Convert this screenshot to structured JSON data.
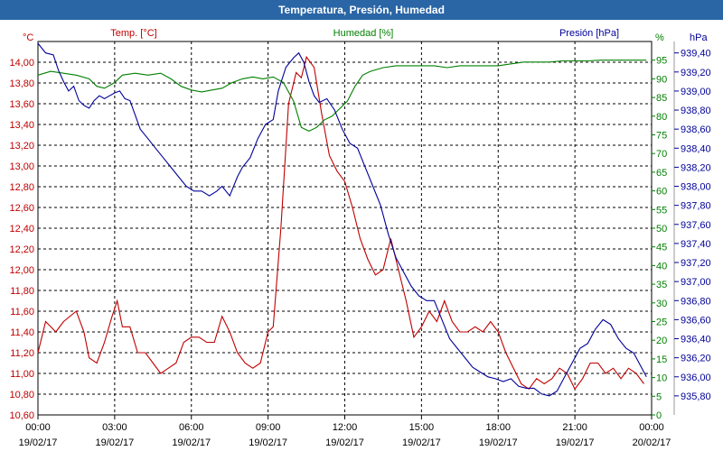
{
  "chart_data": {
    "type": "line",
    "title": "Temperatura, Presión, Humedad",
    "x_ticks": [
      {
        "time": "00:00",
        "date": "19/02/17"
      },
      {
        "time": "03:00",
        "date": "19/02/17"
      },
      {
        "time": "06:00",
        "date": "19/02/17"
      },
      {
        "time": "09:00",
        "date": "19/02/17"
      },
      {
        "time": "12:00",
        "date": "19/02/17"
      },
      {
        "time": "15:00",
        "date": "19/02/17"
      },
      {
        "time": "18:00",
        "date": "19/02/17"
      },
      {
        "time": "21:00",
        "date": "19/02/17"
      },
      {
        "time": "00:00",
        "date": "20/02/17"
      }
    ],
    "x_range_hours": [
      0,
      24
    ],
    "axes": {
      "temp": {
        "label": "Temp. [°C]",
        "unit": "°C",
        "min": 10.6,
        "max": 14.2,
        "ticks": [
          "10,60",
          "10,80",
          "11,00",
          "11,20",
          "11,40",
          "11,60",
          "11,80",
          "12,00",
          "12,20",
          "12,40",
          "12,60",
          "12,80",
          "13,00",
          "13,20",
          "13,40",
          "13,60",
          "13,80",
          "14,00"
        ]
      },
      "hum": {
        "label": "Humedad [%]",
        "unit": "%",
        "min": 0,
        "max": 100,
        "ticks": [
          "0",
          "5",
          "10",
          "15",
          "20",
          "25",
          "30",
          "35",
          "40",
          "45",
          "50",
          "55",
          "60",
          "65",
          "70",
          "75",
          "80",
          "85",
          "90",
          "95"
        ]
      },
      "pres": {
        "label": "Presión [hPa]",
        "unit": "hPa",
        "min": 935.6,
        "max": 939.52,
        "ticks": [
          "935,80",
          "936,00",
          "936,20",
          "936,40",
          "936,60",
          "936,80",
          "937,00",
          "937,20",
          "937,40",
          "937,60",
          "937,80",
          "938,00",
          "938,20",
          "938,40",
          "938,60",
          "938,80",
          "939,00",
          "939,20",
          "939,40"
        ]
      }
    },
    "colors": {
      "temp": "#c00000",
      "hum": "#008000",
      "pres": "#000099",
      "grid": "#000000",
      "title_bg": "#2a66a6"
    },
    "series": [
      {
        "name": "Temp. [°C]",
        "axis": "temp",
        "color": "#c00000",
        "points": [
          [
            0,
            11.2
          ],
          [
            0.3,
            11.5
          ],
          [
            0.7,
            11.4
          ],
          [
            1.0,
            11.5
          ],
          [
            1.5,
            11.6
          ],
          [
            1.8,
            11.4
          ],
          [
            2.0,
            11.15
          ],
          [
            2.3,
            11.1
          ],
          [
            2.6,
            11.3
          ],
          [
            2.9,
            11.55
          ],
          [
            3.1,
            11.7
          ],
          [
            3.3,
            11.45
          ],
          [
            3.6,
            11.45
          ],
          [
            3.9,
            11.2
          ],
          [
            4.2,
            11.2
          ],
          [
            4.5,
            11.1
          ],
          [
            4.8,
            11.0
          ],
          [
            5.1,
            11.05
          ],
          [
            5.4,
            11.1
          ],
          [
            5.7,
            11.3
          ],
          [
            6.0,
            11.35
          ],
          [
            6.3,
            11.35
          ],
          [
            6.6,
            11.3
          ],
          [
            6.9,
            11.3
          ],
          [
            7.2,
            11.55
          ],
          [
            7.5,
            11.4
          ],
          [
            7.8,
            11.2
          ],
          [
            8.1,
            11.1
          ],
          [
            8.4,
            11.05
          ],
          [
            8.7,
            11.1
          ],
          [
            9.0,
            11.4
          ],
          [
            9.2,
            11.45
          ],
          [
            9.5,
            12.4
          ],
          [
            9.8,
            13.6
          ],
          [
            10.1,
            13.9
          ],
          [
            10.3,
            13.85
          ],
          [
            10.5,
            14.05
          ],
          [
            10.8,
            13.95
          ],
          [
            11.1,
            13.5
          ],
          [
            11.4,
            13.1
          ],
          [
            11.7,
            12.95
          ],
          [
            12.0,
            12.85
          ],
          [
            12.3,
            12.6
          ],
          [
            12.6,
            12.3
          ],
          [
            12.9,
            12.1
          ],
          [
            13.2,
            11.95
          ],
          [
            13.5,
            12.0
          ],
          [
            13.8,
            12.3
          ],
          [
            14.1,
            12.0
          ],
          [
            14.4,
            11.7
          ],
          [
            14.7,
            11.35
          ],
          [
            15.0,
            11.45
          ],
          [
            15.3,
            11.6
          ],
          [
            15.6,
            11.5
          ],
          [
            15.9,
            11.7
          ],
          [
            16.2,
            11.5
          ],
          [
            16.5,
            11.4
          ],
          [
            16.8,
            11.4
          ],
          [
            17.1,
            11.45
          ],
          [
            17.4,
            11.4
          ],
          [
            17.7,
            11.5
          ],
          [
            18.0,
            11.4
          ],
          [
            18.3,
            11.2
          ],
          [
            18.6,
            11.05
          ],
          [
            18.9,
            10.9
          ],
          [
            19.2,
            10.85
          ],
          [
            19.5,
            10.95
          ],
          [
            19.8,
            10.9
          ],
          [
            20.1,
            10.95
          ],
          [
            20.4,
            11.05
          ],
          [
            20.7,
            11.0
          ],
          [
            21.0,
            10.85
          ],
          [
            21.3,
            10.95
          ],
          [
            21.6,
            11.1
          ],
          [
            21.9,
            11.1
          ],
          [
            22.2,
            11.0
          ],
          [
            22.5,
            11.05
          ],
          [
            22.8,
            10.95
          ],
          [
            23.1,
            11.05
          ],
          [
            23.4,
            11.0
          ],
          [
            23.7,
            10.9
          ]
        ]
      },
      {
        "name": "Humedad [%]",
        "axis": "hum",
        "color": "#008000",
        "points": [
          [
            0,
            91
          ],
          [
            0.5,
            92
          ],
          [
            1.0,
            91.5
          ],
          [
            1.5,
            91
          ],
          [
            2.0,
            90
          ],
          [
            2.3,
            88
          ],
          [
            2.6,
            87.5
          ],
          [
            3.0,
            89
          ],
          [
            3.3,
            91
          ],
          [
            3.8,
            91.5
          ],
          [
            4.3,
            91
          ],
          [
            4.8,
            91.5
          ],
          [
            5.2,
            90
          ],
          [
            5.6,
            88
          ],
          [
            6.0,
            87
          ],
          [
            6.4,
            86.5
          ],
          [
            6.8,
            87
          ],
          [
            7.2,
            87.5
          ],
          [
            7.6,
            89
          ],
          [
            8.0,
            90
          ],
          [
            8.4,
            90.5
          ],
          [
            8.8,
            90
          ],
          [
            9.2,
            90.5
          ],
          [
            9.6,
            89
          ],
          [
            10.0,
            84
          ],
          [
            10.3,
            77
          ],
          [
            10.6,
            76
          ],
          [
            10.9,
            77
          ],
          [
            11.2,
            79
          ],
          [
            11.5,
            80
          ],
          [
            11.8,
            82
          ],
          [
            12.1,
            84
          ],
          [
            12.4,
            88
          ],
          [
            12.7,
            91
          ],
          [
            13.0,
            92
          ],
          [
            13.5,
            93
          ],
          [
            14.0,
            93.5
          ],
          [
            14.5,
            93.5
          ],
          [
            15.0,
            93.5
          ],
          [
            15.5,
            93.5
          ],
          [
            16.0,
            93
          ],
          [
            16.5,
            93.5
          ],
          [
            17.0,
            93.5
          ],
          [
            17.5,
            93.5
          ],
          [
            18.0,
            93.5
          ],
          [
            18.5,
            94
          ],
          [
            19.0,
            94.5
          ],
          [
            19.5,
            94.5
          ],
          [
            20.0,
            94.5
          ],
          [
            20.5,
            94.8
          ],
          [
            21.0,
            94.8
          ],
          [
            21.5,
            94.8
          ],
          [
            22.0,
            95
          ],
          [
            22.5,
            95
          ],
          [
            23.0,
            95
          ],
          [
            23.5,
            95
          ],
          [
            23.8,
            95
          ]
        ]
      },
      {
        "name": "Presión [hPa]",
        "axis": "pres",
        "color": "#000099",
        "points": [
          [
            0,
            939.5
          ],
          [
            0.3,
            939.4
          ],
          [
            0.6,
            939.38
          ],
          [
            0.8,
            939.22
          ],
          [
            1.0,
            939.1
          ],
          [
            1.2,
            939.0
          ],
          [
            1.4,
            939.05
          ],
          [
            1.6,
            938.9
          ],
          [
            1.8,
            938.85
          ],
          [
            2.0,
            938.82
          ],
          [
            2.2,
            938.9
          ],
          [
            2.4,
            938.95
          ],
          [
            2.6,
            938.92
          ],
          [
            2.8,
            938.95
          ],
          [
            3.0,
            938.98
          ],
          [
            3.2,
            939.0
          ],
          [
            3.4,
            938.92
          ],
          [
            3.6,
            938.9
          ],
          [
            3.8,
            938.75
          ],
          [
            4.0,
            938.6
          ],
          [
            4.3,
            938.5
          ],
          [
            4.6,
            938.4
          ],
          [
            4.9,
            938.3
          ],
          [
            5.2,
            938.2
          ],
          [
            5.5,
            938.1
          ],
          [
            5.8,
            938.0
          ],
          [
            6.1,
            937.95
          ],
          [
            6.4,
            937.95
          ],
          [
            6.7,
            937.9
          ],
          [
            7.0,
            937.95
          ],
          [
            7.2,
            938.0
          ],
          [
            7.5,
            937.9
          ],
          [
            7.8,
            938.1
          ],
          [
            8.0,
            938.2
          ],
          [
            8.3,
            938.3
          ],
          [
            8.6,
            938.5
          ],
          [
            8.9,
            938.65
          ],
          [
            9.2,
            938.7
          ],
          [
            9.4,
            939.0
          ],
          [
            9.7,
            939.25
          ],
          [
            10.0,
            939.35
          ],
          [
            10.2,
            939.4
          ],
          [
            10.4,
            939.3
          ],
          [
            10.6,
            939.1
          ],
          [
            10.8,
            938.95
          ],
          [
            11.0,
            938.88
          ],
          [
            11.3,
            938.92
          ],
          [
            11.6,
            938.8
          ],
          [
            11.9,
            938.6
          ],
          [
            12.2,
            938.45
          ],
          [
            12.5,
            938.4
          ],
          [
            12.8,
            938.2
          ],
          [
            13.1,
            938.0
          ],
          [
            13.4,
            937.8
          ],
          [
            13.7,
            937.5
          ],
          [
            14.0,
            937.25
          ],
          [
            14.3,
            937.1
          ],
          [
            14.6,
            936.95
          ],
          [
            14.9,
            936.85
          ],
          [
            15.2,
            936.8
          ],
          [
            15.5,
            936.8
          ],
          [
            15.8,
            936.6
          ],
          [
            16.1,
            936.4
          ],
          [
            16.4,
            936.3
          ],
          [
            16.7,
            936.2
          ],
          [
            17.0,
            936.1
          ],
          [
            17.3,
            936.05
          ],
          [
            17.6,
            936.0
          ],
          [
            17.9,
            935.98
          ],
          [
            18.2,
            935.95
          ],
          [
            18.5,
            935.98
          ],
          [
            18.8,
            935.9
          ],
          [
            19.1,
            935.88
          ],
          [
            19.4,
            935.88
          ],
          [
            19.7,
            935.82
          ],
          [
            20.0,
            935.8
          ],
          [
            20.3,
            935.85
          ],
          [
            20.6,
            936.0
          ],
          [
            20.9,
            936.15
          ],
          [
            21.2,
            936.3
          ],
          [
            21.5,
            936.35
          ],
          [
            21.8,
            936.5
          ],
          [
            22.1,
            936.6
          ],
          [
            22.4,
            936.55
          ],
          [
            22.7,
            936.4
          ],
          [
            23.0,
            936.3
          ],
          [
            23.3,
            936.25
          ],
          [
            23.6,
            936.1
          ],
          [
            23.8,
            936.0
          ]
        ]
      }
    ]
  }
}
